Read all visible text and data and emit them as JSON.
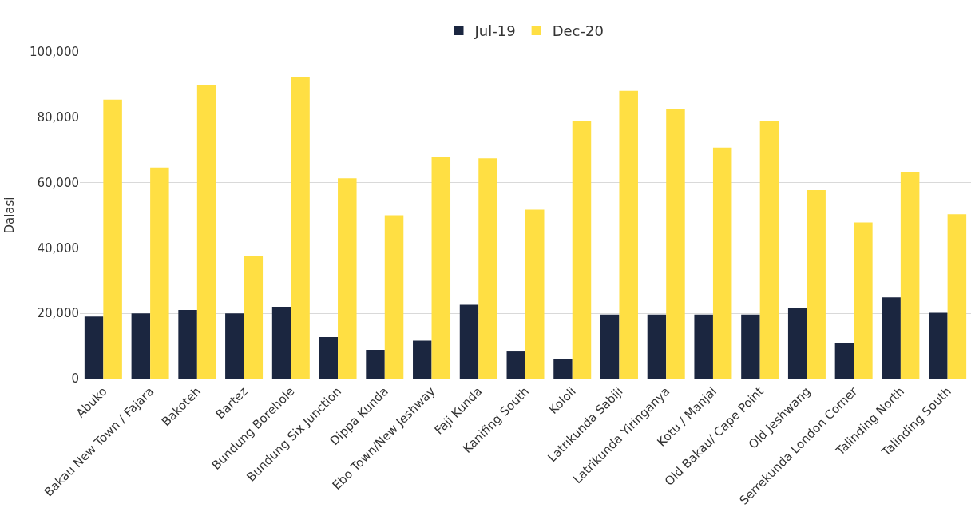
{
  "chart_data": {
    "type": "bar",
    "ylabel": "Dalasi",
    "categories": [
      "Abuko",
      "Bakau New Town / Fajara",
      "Bakoteh",
      "Bartez",
      "Bundung Borehole",
      "Bundung Six Junction",
      "Dippa Kunda",
      "Ebo Town/New Jeshway",
      "Faji Kunda",
      "Kanifing South",
      "Kololi",
      "Latrikunda Sabiji",
      "Latrikunda Yiringanya",
      "Kotu / Manjai",
      "Old Bakau/ Cape Point",
      "Old Jeshwang",
      "Serrekunda London Corner",
      "Talinding North",
      "Talinding South"
    ],
    "series": [
      {
        "name": "Jul-19",
        "color": "#1b2640",
        "values": [
          19000,
          20000,
          21000,
          20000,
          22000,
          12700,
          8800,
          11600,
          22600,
          8300,
          6100,
          19600,
          19600,
          19600,
          19600,
          21500,
          10800,
          24900,
          20200
        ]
      },
      {
        "name": "Dec-20",
        "color": "#ffdf43",
        "values": [
          85400,
          64600,
          89800,
          37600,
          92300,
          61300,
          50000,
          67700,
          67400,
          51700,
          79000,
          88100,
          82600,
          70700,
          79000,
          57700,
          47800,
          63300,
          50300
        ]
      }
    ],
    "ylim": [
      0,
      100000
    ],
    "yticks": [
      {
        "value": 0,
        "label": "0"
      },
      {
        "value": 20000,
        "label": "20,000"
      },
      {
        "value": 40000,
        "label": "40,000"
      },
      {
        "value": 60000,
        "label": "60,000"
      },
      {
        "value": 80000,
        "label": "80,000"
      },
      {
        "value": 100000,
        "label": "100,000"
      }
    ],
    "grid": "y",
    "legend": "top"
  }
}
